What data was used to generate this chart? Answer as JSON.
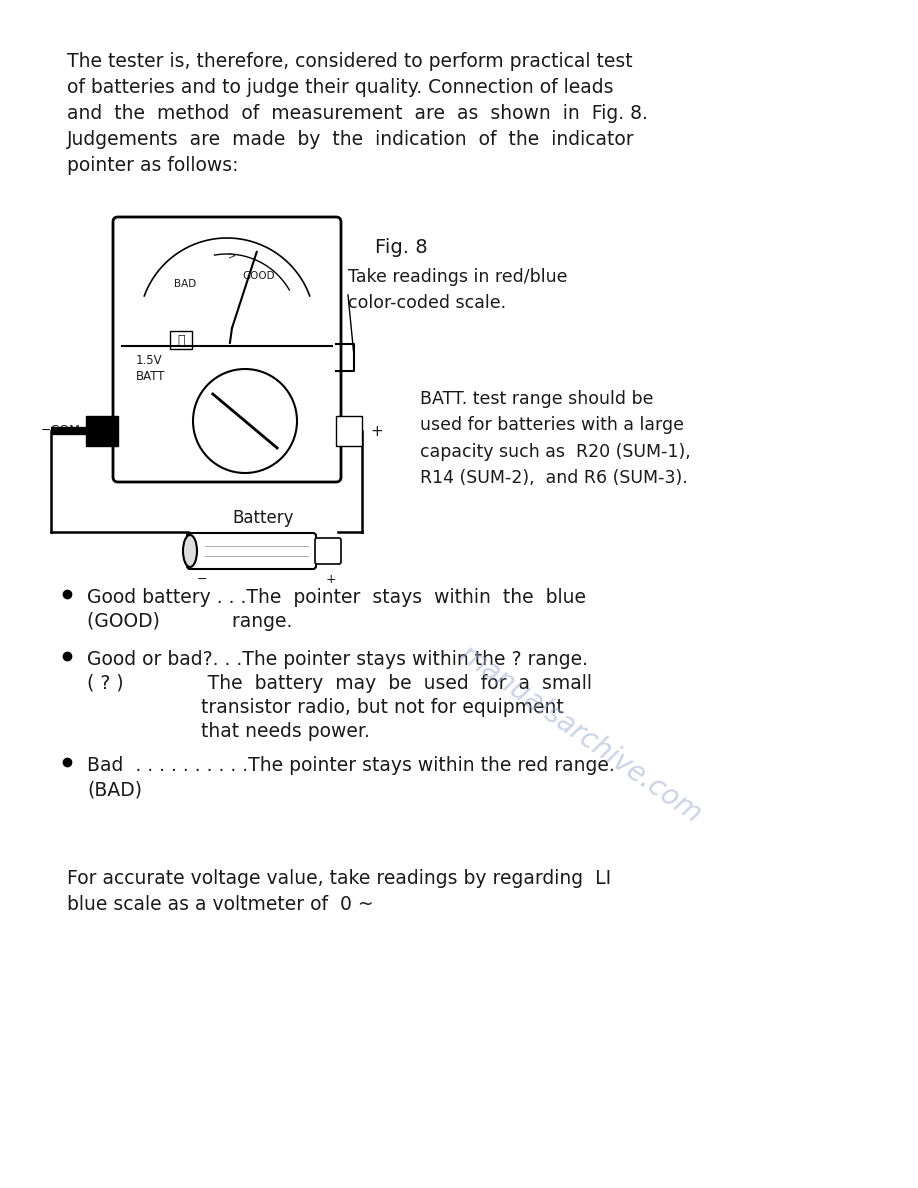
{
  "bg_color": "#ffffff",
  "watermark_color": "#9aa8cc",
  "text_color": "#1a1a1a",
  "font_size_body": 13.5,
  "font_size_caption": 12.5,
  "font_size_fig": 14.0,
  "para1_lines": [
    "The tester is, therefore, considered to perform practical test",
    "of batteries and to judge their quality. Connection of leads",
    "and  the  method  of  measurement  are  as  shown  in  Fig. 8.",
    "Judgements  are  made  by  the  indication  of  the  indicator",
    "pointer as follows:"
  ],
  "fig_label": "Fig. 8",
  "caption1": "Take readings in red/blue\ncolor-coded scale.",
  "caption2": "BATT. test range should be\nused for batteries with a large\ncapacity such as  R20 (SUM-1),\nR14 (SUM-2),  and R6 (SUM-3).",
  "bullet1_line1": "Good battery . . .The  pointer  stays  within  the  blue",
  "bullet1_line2": "(GOOD)            range.",
  "bullet2_line1": "Good or bad?. . .The pointer stays within the ? range.",
  "bullet2_line2": "( ? )              The  battery  may  be  used  for  a  small",
  "bullet2_line3": "                   transistor radio, but not for equipment",
  "bullet2_line4": "                   that needs power.",
  "bullet3_line1": "Bad  . . . . . . . . . .The pointer stays within the red range.",
  "bullet3_line2": "(BAD)",
  "footer_lines": [
    "For accurate voltage value, take readings by regarding  LI",
    "blue scale as a voltmeter of  0 ~"
  ]
}
